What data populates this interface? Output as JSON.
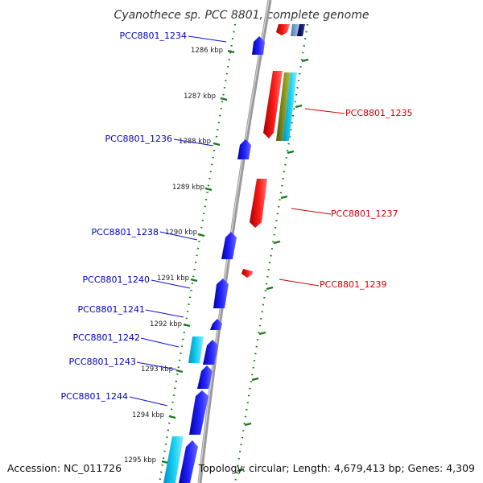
{
  "title": "Cyanothece sp. PCC 8801, complete genome",
  "accession": "Accession: NC_011726",
  "summary": "Topology: circular; Length: 4,679,413 bp; Genes: 4,309",
  "ticks": [
    {
      "label": "1286 kbp"
    },
    {
      "label": "1287 kbp"
    },
    {
      "label": "1288 kbp"
    },
    {
      "label": "1289 kbp"
    },
    {
      "label": "1290 kbp"
    },
    {
      "label": "1291 kbp"
    },
    {
      "label": "1292 kbp"
    },
    {
      "label": "1293 kbp"
    },
    {
      "label": "1294 kbp"
    },
    {
      "label": "1295 kbp"
    }
  ],
  "genes_forward": [
    {
      "label": "PCC8801_1234"
    },
    {
      "label": "PCC8801_1236"
    },
    {
      "label": "PCC8801_1238"
    },
    {
      "label": "PCC8801_1240"
    },
    {
      "label": "PCC8801_1241"
    },
    {
      "label": "PCC8801_1242"
    },
    {
      "label": "PCC8801_1243"
    },
    {
      "label": "PCC8801_1244"
    }
  ],
  "genes_reverse": [
    {
      "label": "PCC8801_1235"
    },
    {
      "label": "PCC8801_1237"
    },
    {
      "label": "PCC8801_1239"
    }
  ],
  "colors": {
    "forward_gene": "#1010e0",
    "reverse_gene": "#ee1010",
    "backbone": "#888888",
    "tick": "#1a7a1a",
    "cyan_feature": "#10c8e8",
    "olive_feature": "#7a8a1a",
    "navy_feature": "#101060"
  }
}
